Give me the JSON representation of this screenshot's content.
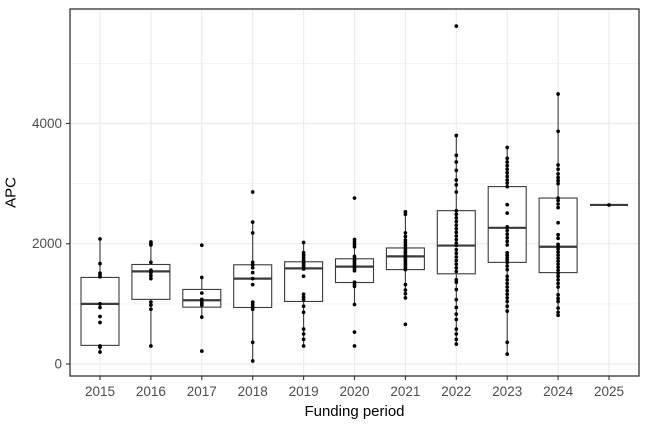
{
  "chart_data": {
    "type": "boxplot",
    "title": "",
    "xlabel": "Funding period",
    "ylabel": "APC",
    "categories": [
      "2015",
      "2016",
      "2017",
      "2018",
      "2019",
      "2020",
      "2021",
      "2022",
      "2023",
      "2024",
      "2025"
    ],
    "y_ticks": [
      0,
      2000,
      4000
    ],
    "y_minor_gridlines": [
      1000,
      3000,
      5000
    ],
    "ylim": [
      0,
      5890
    ],
    "grid": "on",
    "legend": "none",
    "series": [
      {
        "category": "2015",
        "box": {
          "whisker_low": 200,
          "q1": 310,
          "median": 1000,
          "q3": 1440,
          "whisker_high": 2080
        },
        "points": [
          2080,
          1670,
          1510,
          1480,
          1450,
          1000,
          940,
          790,
          690,
          300,
          280,
          200
        ]
      },
      {
        "category": "2016",
        "box": {
          "whisker_low": 300,
          "q1": 1075,
          "median": 1540,
          "q3": 1655,
          "whisker_high": 2030
        },
        "points": [
          2030,
          2000,
          1980,
          1690,
          1560,
          1520,
          1470,
          1420,
          1030,
          980,
          910,
          300
        ]
      },
      {
        "category": "2017",
        "box": {
          "whisker_low": 780,
          "q1": 945,
          "median": 1060,
          "q3": 1240,
          "whisker_high": 1440
        },
        "points": [
          1975,
          1440,
          1180,
          1075,
          1050,
          1010,
          980,
          780,
          215
        ]
      },
      {
        "category": "2018",
        "box": {
          "whisker_low": 50,
          "q1": 940,
          "median": 1420,
          "q3": 1650,
          "whisker_high": 2360
        },
        "points": [
          2860,
          2360,
          2180,
          1690,
          1650,
          1600,
          1520,
          1420,
          1320,
          1030,
          990,
          950,
          910,
          360,
          50
        ]
      },
      {
        "category": "2019",
        "box": {
          "whisker_low": 300,
          "q1": 1040,
          "median": 1590,
          "q3": 1700,
          "whisker_high": 2020
        },
        "points": [
          2020,
          1850,
          1810,
          1770,
          1730,
          1700,
          1670,
          1640,
          1610,
          1580,
          1460,
          1160,
          1110,
          1070,
          960,
          860,
          580,
          500,
          410,
          300
        ]
      },
      {
        "category": "2020",
        "box": {
          "whisker_low": 990,
          "q1": 1355,
          "median": 1620,
          "q3": 1750,
          "whisker_high": 2070
        },
        "points": [
          2760,
          2070,
          2030,
          1990,
          1950,
          1790,
          1760,
          1730,
          1700,
          1670,
          1640,
          1610,
          1580,
          1550,
          1360,
          1320,
          1290,
          990,
          530,
          300
        ]
      },
      {
        "category": "2021",
        "box": {
          "whisker_low": 1100,
          "q1": 1570,
          "median": 1790,
          "q3": 1930,
          "whisker_high": 2500
        },
        "points": [
          2530,
          2490,
          2180,
          2120,
          2060,
          2020,
          1980,
          1940,
          1900,
          1870,
          1840,
          1810,
          1780,
          1750,
          1720,
          1690,
          1660,
          1630,
          1600,
          1570,
          1320,
          1230,
          1170,
          1100,
          660
        ]
      },
      {
        "category": "2022",
        "box": {
          "whisker_low": 330,
          "q1": 1500,
          "median": 1970,
          "q3": 2550,
          "whisker_high": 3800
        },
        "points": [
          5620,
          3800,
          3470,
          3360,
          3220,
          3060,
          2980,
          2860,
          2550,
          2490,
          2430,
          2370,
          2310,
          2250,
          2190,
          2130,
          2070,
          2010,
          1970,
          1900,
          1840,
          1780,
          1720,
          1660,
          1600,
          1540,
          1400,
          1360,
          1240,
          1070,
          940,
          830,
          740,
          580,
          500,
          410,
          330
        ]
      },
      {
        "category": "2023",
        "box": {
          "whisker_low": 165,
          "q1": 1690,
          "median": 2265,
          "q3": 2950,
          "whisker_high": 3600
        },
        "points": [
          3600,
          3420,
          3360,
          3300,
          3240,
          3180,
          3120,
          3060,
          3010,
          2950,
          2650,
          2510,
          2280,
          2220,
          2160,
          2100,
          2040,
          1980,
          1850,
          1810,
          1770,
          1730,
          1690,
          1630,
          1570,
          1460,
          1400,
          1340,
          1280,
          1220,
          1160,
          1100,
          1040,
          960,
          880,
          360,
          165
        ]
      },
      {
        "category": "2024",
        "box": {
          "whisker_low": 810,
          "q1": 1520,
          "median": 1950,
          "q3": 2760,
          "whisker_high": 4490
        },
        "points": [
          4490,
          3870,
          3310,
          3240,
          3160,
          3100,
          3050,
          3000,
          2760,
          2720,
          2660,
          2600,
          2350,
          2150,
          2090,
          1990,
          1950,
          1910,
          1860,
          1810,
          1760,
          1710,
          1660,
          1610,
          1560,
          1510,
          1460,
          1400,
          1340,
          1280,
          1150,
          1090,
          1040,
          930,
          860,
          810
        ]
      },
      {
        "category": "2025",
        "box": {
          "whisker_low": 2645,
          "q1": 2645,
          "median": 2645,
          "q3": 2645,
          "whisker_high": 2645
        },
        "points": [
          2645
        ]
      }
    ],
    "colors": {
      "background": "#ffffff",
      "panel_border": "#333333",
      "grid_major": "#ebebeb",
      "grid_minor": "#f0f0f0",
      "box_stroke": "#3a3a3a",
      "box_fill": "#ffffff",
      "point": "#000000",
      "tick_label": "#4d4d4d",
      "axis_title": "#000000",
      "tick_mark": "#333333"
    }
  }
}
